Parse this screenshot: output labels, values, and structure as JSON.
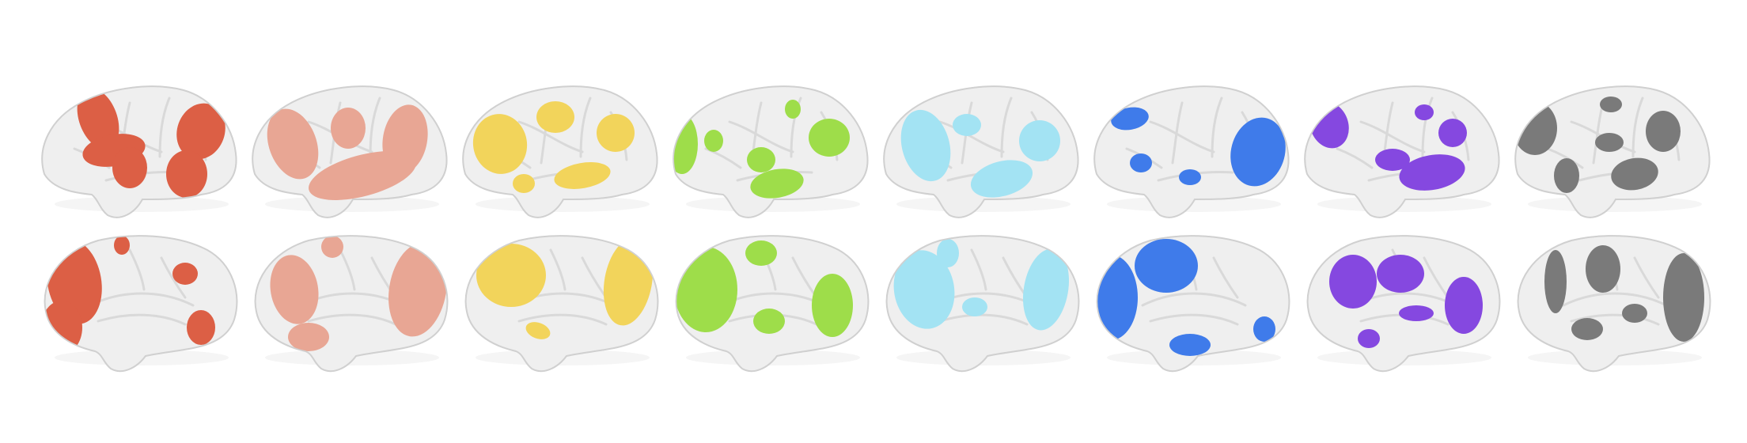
{
  "figure": {
    "rows": [
      {
        "view": "lateral",
        "label": ""
      },
      {
        "view": "medial",
        "label": ""
      }
    ],
    "networks": [
      {
        "id": "net-1",
        "color": "#DC5F45"
      },
      {
        "id": "net-2",
        "color": "#E8A694"
      },
      {
        "id": "net-3",
        "color": "#F2D45B"
      },
      {
        "id": "net-4",
        "color": "#9EDD4A"
      },
      {
        "id": "net-5",
        "color": "#A3E3F3"
      },
      {
        "id": "net-6",
        "color": "#3F7BEA"
      },
      {
        "id": "net-7",
        "color": "#8548E0"
      },
      {
        "id": "net-8",
        "color": "#7A7A7A"
      }
    ],
    "cortex_color": "#EFEFEF",
    "outline_color": "#D0D0D0",
    "sulcus_color": "#D9D9D9"
  }
}
